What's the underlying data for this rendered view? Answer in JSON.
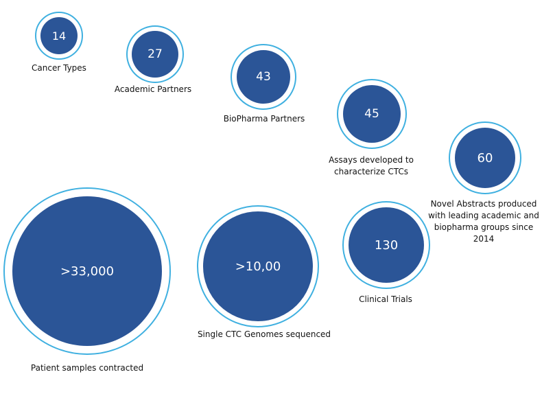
{
  "colors": {
    "disc": "#2b5597",
    "ring": "#3fb0e0"
  },
  "stats": [
    {
      "id": "cancer-types",
      "value": "14",
      "label": "Cancer Types"
    },
    {
      "id": "academic-partners",
      "value": "27",
      "label": "Academic Partners"
    },
    {
      "id": "biopharma-partners",
      "value": "43",
      "label": "BioPharma Partners"
    },
    {
      "id": "assays",
      "value": "45",
      "label": "Assays developed to characterize CTCs"
    },
    {
      "id": "novel-abstracts",
      "value": "60",
      "label": "Novel Abstracts produced with leading academic and biopharma groups since 2014"
    },
    {
      "id": "patient-samples",
      "value": ">33,000",
      "label": "Patient samples contracted"
    },
    {
      "id": "single-ctc-genomes",
      "value": ">10,00",
      "label": "Single CTC Genomes sequenced"
    },
    {
      "id": "clinical-trials",
      "value": "130",
      "label": "Clinical Trials"
    }
  ]
}
